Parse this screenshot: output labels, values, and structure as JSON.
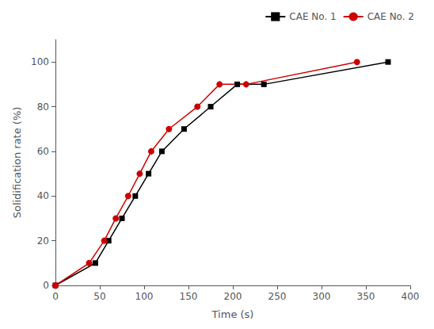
{
  "chart_data": {
    "type": "line",
    "xlabel": "Time (s)",
    "ylabel": "Solidification rate (%)",
    "series": [
      {
        "name": "CAE No. 1",
        "color": "#000000",
        "marker": "square",
        "x": [
          0,
          45,
          60,
          75,
          90,
          105,
          120,
          145,
          175,
          205,
          235,
          375
        ],
        "values": [
          0,
          10,
          20,
          30,
          40,
          50,
          60,
          70,
          80,
          90,
          90,
          100
        ]
      },
      {
        "name": "CAE No. 2",
        "color": "#cc0000",
        "marker": "circle",
        "x": [
          0,
          38,
          55,
          68,
          82,
          95,
          108,
          128,
          160,
          185,
          215,
          340
        ],
        "values": [
          0,
          10,
          20,
          30,
          40,
          50,
          60,
          70,
          80,
          90,
          90,
          100
        ]
      }
    ],
    "xlim": [
      0,
      400
    ],
    "ylim": [
      0,
      110
    ],
    "xticks": [
      0,
      50,
      100,
      150,
      200,
      250,
      300,
      350,
      400
    ],
    "yticks": [
      0,
      20,
      40,
      60,
      80,
      100
    ],
    "grid": false,
    "legend": "upper right"
  }
}
